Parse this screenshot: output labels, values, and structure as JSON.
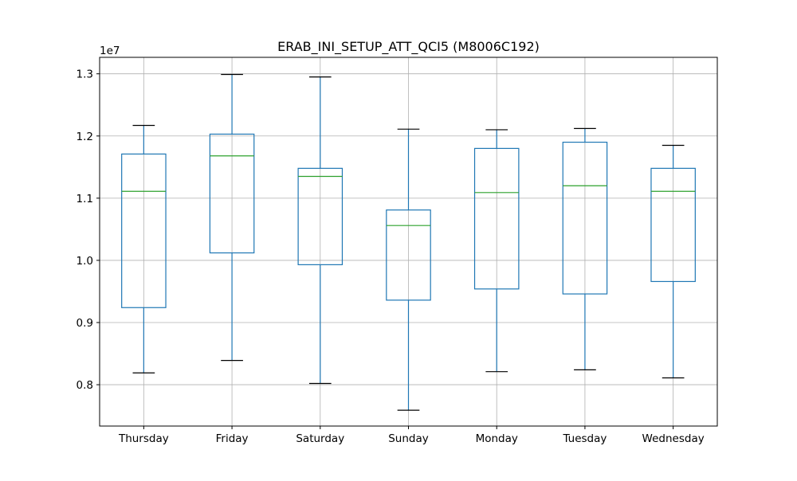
{
  "chart_data": {
    "type": "boxplot",
    "title": "ERAB_INI_SETUP_ATT_QCI5 (M8006C192)",
    "xlabel": "",
    "ylabel": "",
    "y_offset_label": "1e7",
    "y_scale_factor": 10000000,
    "ylim": [
      0.7335,
      1.3265
    ],
    "yticks": [
      0.8,
      0.9,
      1.0,
      1.1,
      1.2,
      1.3
    ],
    "ytick_labels": [
      "0.8",
      "0.9",
      "1.0",
      "1.1",
      "1.2",
      "1.3"
    ],
    "grid": true,
    "categories": [
      "Thursday",
      "Friday",
      "Saturday",
      "Sunday",
      "Monday",
      "Tuesday",
      "Wednesday"
    ],
    "boxes": [
      {
        "label": "Thursday",
        "whisker_low": 0.819,
        "q1": 0.924,
        "median": 1.111,
        "q3": 1.171,
        "whisker_high": 1.217
      },
      {
        "label": "Friday",
        "whisker_low": 0.839,
        "q1": 1.012,
        "median": 1.168,
        "q3": 1.203,
        "whisker_high": 1.299
      },
      {
        "label": "Saturday",
        "whisker_low": 0.802,
        "q1": 0.993,
        "median": 1.135,
        "q3": 1.148,
        "whisker_high": 1.295
      },
      {
        "label": "Sunday",
        "whisker_low": 0.759,
        "q1": 0.936,
        "median": 1.056,
        "q3": 1.081,
        "whisker_high": 1.211
      },
      {
        "label": "Monday",
        "whisker_low": 0.821,
        "q1": 0.954,
        "median": 1.109,
        "q3": 1.18,
        "whisker_high": 1.21
      },
      {
        "label": "Tuesday",
        "whisker_low": 0.824,
        "q1": 0.946,
        "median": 1.12,
        "q3": 1.19,
        "whisker_high": 1.212
      },
      {
        "label": "Wednesday",
        "whisker_low": 0.811,
        "q1": 0.966,
        "median": 1.111,
        "q3": 1.148,
        "whisker_high": 1.185
      }
    ],
    "colors": {
      "box": "#1f77b4",
      "median": "#2ca02c",
      "cap": "#000000",
      "grid": "#b0b0b0",
      "axes": "#000000"
    }
  }
}
